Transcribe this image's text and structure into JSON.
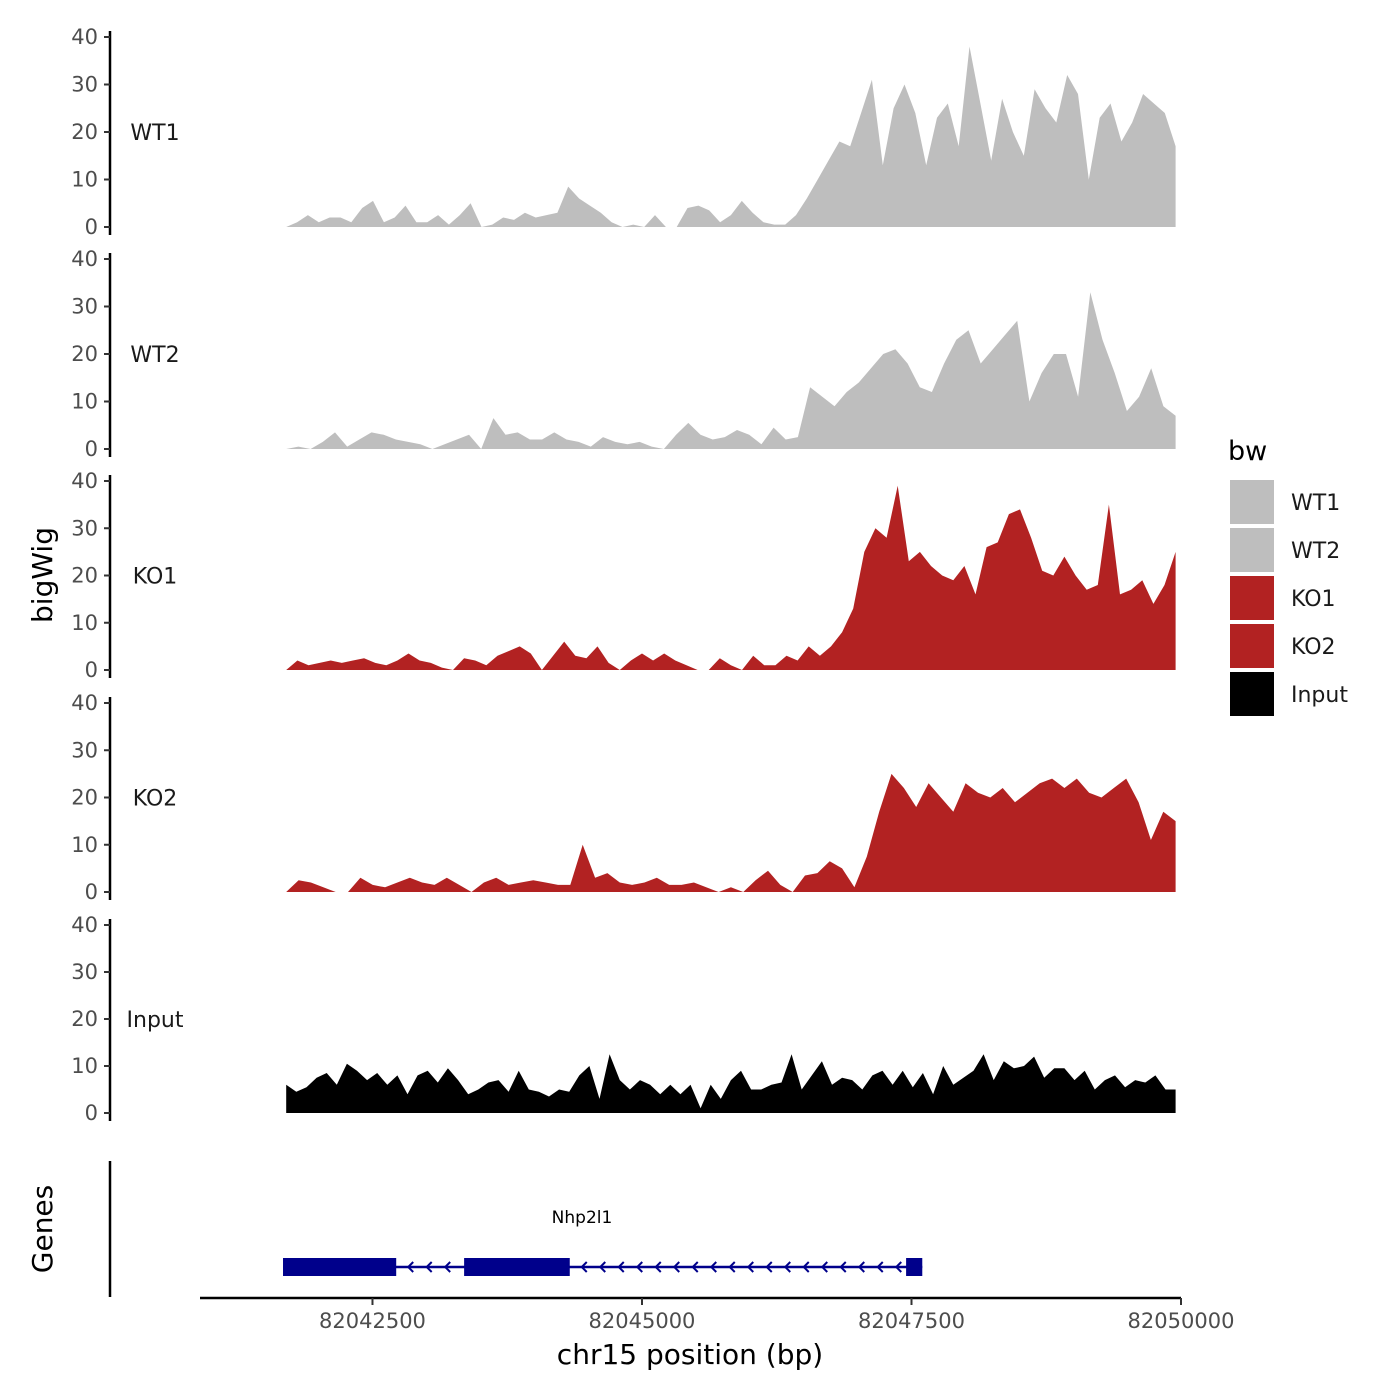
{
  "chart_data": {
    "type": "area",
    "y_axis_title": "bigWig",
    "x_axis_title": "chr15 position (bp)",
    "genes_axis_title": "Genes",
    "ylim": [
      0,
      40
    ],
    "y_ticks": [
      "0",
      "10",
      "20",
      "30",
      "40"
    ],
    "xlim": [
      82040900,
      82050000
    ],
    "x_ticks": [
      82042500,
      82045000,
      82047500,
      82050000
    ],
    "x_tick_labels": [
      "82042500",
      "82045000",
      "82047500",
      "82050000"
    ],
    "data_range": [
      82041700,
      82049950
    ],
    "legend": {
      "title": "bw",
      "items": [
        {
          "label": "WT1",
          "color": "#bebebe"
        },
        {
          "label": "WT2",
          "color": "#bebebe"
        },
        {
          "label": "KO1",
          "color": "#b22222"
        },
        {
          "label": "KO2",
          "color": "#b22222"
        },
        {
          "label": "Input",
          "color": "#000000"
        }
      ]
    },
    "tracks": [
      {
        "name": "WT1",
        "color": "#bebebe",
        "values": [
          0,
          1,
          2.5,
          1,
          2,
          2,
          1,
          4,
          5.5,
          1,
          2,
          4.5,
          1,
          1,
          2.5,
          0.5,
          2.5,
          5,
          0,
          0.5,
          2,
          1.5,
          3,
          2,
          2.5,
          3,
          8.5,
          6,
          4.5,
          3,
          1,
          0,
          0.5,
          0,
          2.5,
          0,
          0,
          4,
          4.5,
          3.5,
          1,
          2.5,
          5.5,
          3,
          1,
          0.5,
          0.5,
          2.5,
          6,
          10,
          14,
          18,
          17,
          24,
          31,
          13,
          25,
          30,
          24,
          13,
          23,
          26,
          17,
          38,
          26,
          14,
          27,
          20,
          15,
          29,
          25,
          22,
          32,
          28,
          10,
          23,
          26,
          18,
          22,
          28,
          26,
          24,
          17
        ]
      },
      {
        "name": "WT2",
        "color": "#bebebe",
        "values": [
          0,
          0.5,
          0,
          1.5,
          3.5,
          0.5,
          2,
          3.5,
          3,
          2,
          1.5,
          1,
          0,
          1,
          2,
          3,
          0,
          6.5,
          3,
          3.5,
          2,
          2,
          3.5,
          2,
          1.5,
          0.5,
          2.5,
          1.5,
          1,
          1.5,
          0.5,
          0,
          3,
          5.5,
          3,
          2,
          2.5,
          4,
          3,
          1,
          4.5,
          2,
          2.5,
          13,
          11,
          9,
          12,
          14,
          17,
          20,
          21,
          18,
          13,
          12,
          18,
          23,
          25,
          18,
          21,
          24,
          27,
          10,
          16,
          20,
          20,
          11,
          33,
          23,
          16,
          8,
          11,
          17,
          9,
          7
        ]
      },
      {
        "name": "KO1",
        "color": "#b22222",
        "values": [
          0,
          2,
          1,
          1.5,
          2,
          1.5,
          2,
          2.5,
          1.5,
          1,
          2,
          3.5,
          2,
          1.5,
          0.5,
          0,
          2.5,
          2,
          1,
          3,
          4,
          5,
          3.5,
          0,
          3,
          6,
          3,
          2.5,
          5,
          1.5,
          0,
          2,
          3.5,
          2,
          3.5,
          2,
          1,
          0,
          0,
          2.5,
          1,
          0,
          3,
          1,
          1,
          3,
          2,
          5,
          3,
          5,
          8,
          13,
          25,
          30,
          28,
          39,
          23,
          25,
          22,
          20,
          19,
          22,
          16,
          26,
          27,
          33,
          34,
          28,
          21,
          20,
          24,
          20,
          17,
          18,
          35,
          16,
          17,
          19,
          14,
          18,
          25
        ]
      },
      {
        "name": "KO2",
        "color": "#b22222",
        "values": [
          0,
          2.5,
          2,
          1,
          0,
          0,
          3,
          1.5,
          1,
          2,
          3,
          2,
          1.5,
          3,
          1.5,
          0,
          2,
          3,
          1.5,
          2,
          2.5,
          2,
          1.5,
          1.5,
          10,
          3,
          4,
          2,
          1.5,
          2,
          3,
          1.5,
          1.5,
          2,
          1,
          0,
          1,
          0,
          2.5,
          4.5,
          1.5,
          0,
          3.5,
          4,
          6.5,
          5,
          1,
          7.5,
          17,
          25,
          22,
          18,
          23,
          20,
          17,
          23,
          21,
          20,
          22,
          19,
          21,
          23,
          24,
          22,
          24,
          21,
          20,
          22,
          24,
          19,
          11,
          17,
          15
        ]
      },
      {
        "name": "Input",
        "color": "#000000",
        "values": [
          6,
          4.5,
          5.5,
          7.5,
          8.5,
          6,
          10.5,
          9,
          7,
          8.5,
          6,
          8,
          4,
          8,
          9,
          6.5,
          9.5,
          7,
          4,
          5,
          6.5,
          7,
          4.5,
          9,
          5,
          4.5,
          3.5,
          5,
          4.5,
          8,
          10,
          3,
          12.5,
          7,
          5,
          7,
          6,
          4,
          6,
          4,
          6,
          1,
          6,
          3,
          7,
          9,
          5,
          5,
          6,
          6.5,
          12.5,
          5,
          8,
          11,
          6,
          7.5,
          7,
          5,
          8,
          9,
          6,
          9,
          5.5,
          8.5,
          4,
          10,
          6,
          7.5,
          9,
          12.5,
          7,
          11,
          9.5,
          10,
          12,
          7.5,
          9.5,
          9.5,
          7,
          9,
          5,
          7,
          8,
          5.5,
          7,
          6.5,
          8,
          5,
          5
        ]
      }
    ],
    "genes": [
      {
        "name": "Nhp2l1",
        "color": "#00008b",
        "strand": "-",
        "start": 82041670,
        "end": 82047600,
        "exons": [
          [
            82041670,
            82042720
          ],
          [
            82043350,
            82044330
          ],
          [
            82047450,
            82047600
          ]
        ]
      }
    ]
  }
}
